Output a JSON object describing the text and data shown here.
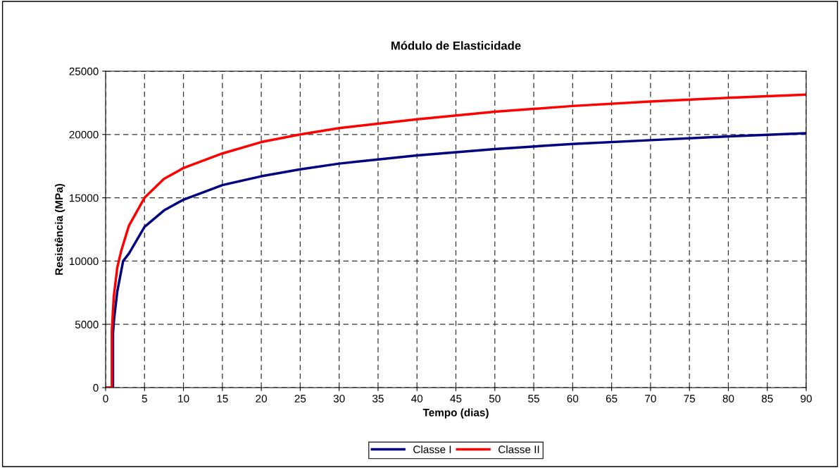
{
  "chart_data": {
    "type": "line",
    "title": "Módulo de Elasticidade",
    "xlabel": "Tempo (dias)",
    "ylabel": "Resistência (MPa)",
    "xlim": [
      0,
      90
    ],
    "xticks": [
      0,
      5,
      10,
      15,
      20,
      25,
      30,
      35,
      40,
      45,
      50,
      55,
      60,
      65,
      70,
      75,
      80,
      85,
      90
    ],
    "ylim": [
      0,
      25000
    ],
    "yticks": [
      0,
      5000,
      10000,
      15000,
      20000,
      25000
    ],
    "grid": true,
    "legend": "bottom",
    "marker": "none",
    "line_style": "solid",
    "series": [
      {
        "name": "Classe I",
        "color": "#000080",
        "x": [
          0,
          0.95,
          0.95,
          1.1,
          1.5,
          2.25,
          3,
          5,
          7.5,
          10,
          15,
          20,
          25,
          30,
          40,
          50,
          60,
          70,
          80,
          90
        ],
        "values": [
          0,
          0,
          4300,
          5500,
          7600,
          10000,
          10600,
          12700,
          14000,
          14850,
          16000,
          16700,
          17250,
          17700,
          18350,
          18850,
          19250,
          19550,
          19850,
          20100
        ]
      },
      {
        "name": "Classe II",
        "color": "#ff0000",
        "x": [
          0,
          0.8,
          0.8,
          1.05,
          1.5,
          2,
          3,
          5,
          7.5,
          10,
          15,
          20,
          25,
          30,
          40,
          50,
          60,
          70,
          80,
          90
        ],
        "values": [
          0,
          0,
          4500,
          7200,
          9500,
          10800,
          12800,
          15000,
          16500,
          17350,
          18500,
          19400,
          20000,
          20500,
          21200,
          21800,
          22250,
          22600,
          22900,
          23150
        ]
      }
    ]
  }
}
